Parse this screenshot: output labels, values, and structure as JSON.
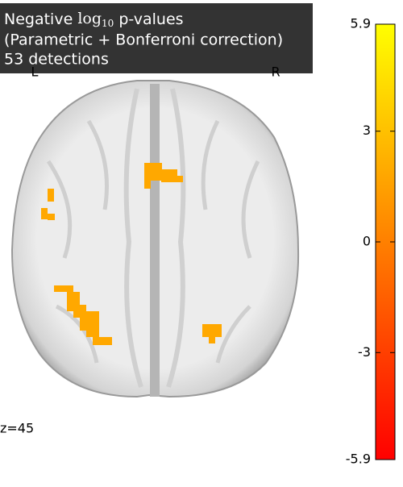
{
  "title": {
    "line1": {
      "prefix": "Negative",
      "math": "log",
      "subscript": "10",
      "suffix": "p-values"
    },
    "line2": "(Parametric + Bonferroni correction)",
    "line3": "53 detections"
  },
  "orientation": {
    "left": "L",
    "right": "R"
  },
  "slice_label": "z=45",
  "colorbar": {
    "ylim": [
      -5.9,
      5.9
    ],
    "yticks": [
      -5.9,
      -3,
      0,
      3,
      5.9
    ]
  }
}
